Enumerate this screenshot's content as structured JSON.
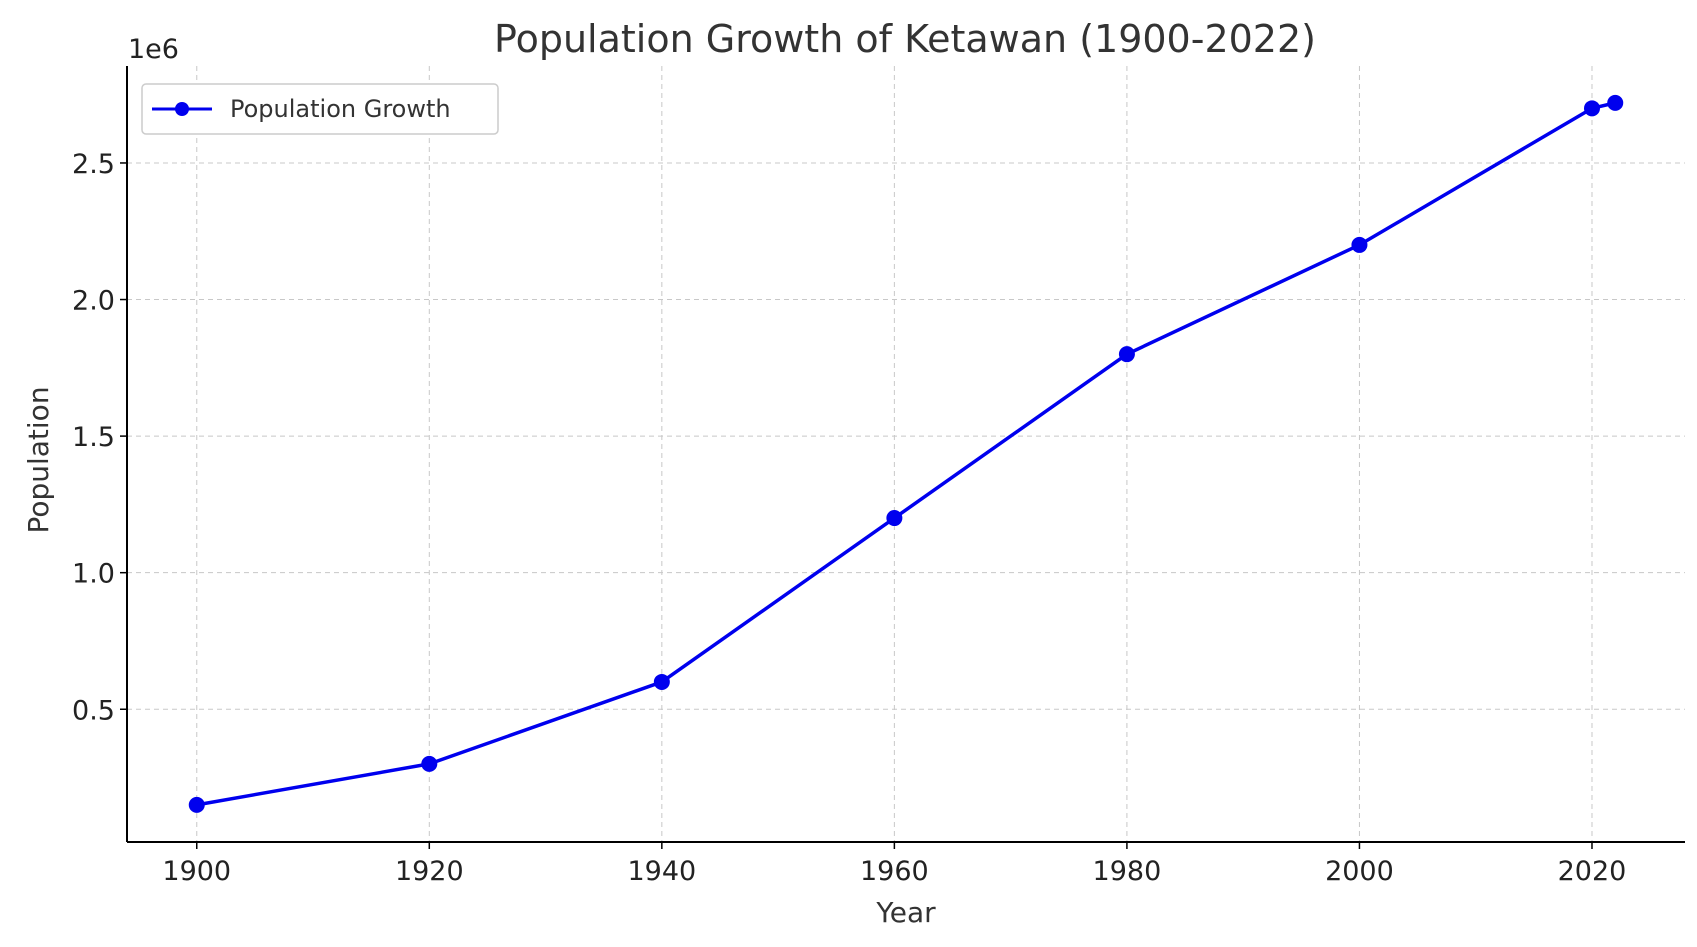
{
  "chart_data": {
    "type": "line",
    "title": "Population Growth of Ketawan (1900-2022)",
    "xlabel": "Year",
    "ylabel": "Population",
    "y_multiplier_label": "1e6",
    "x": [
      1900,
      1920,
      1940,
      1960,
      1980,
      2000,
      2020,
      2022
    ],
    "series": [
      {
        "name": "Population Growth",
        "color": "#0000ee",
        "values": [
          150000,
          300000,
          600000,
          1200000,
          1800000,
          2200000,
          2700000,
          2720000
        ]
      }
    ],
    "xlim": [
      1894,
      2028
    ],
    "ylim": [
      14000,
      2855000
    ],
    "x_ticks": [
      1900,
      1920,
      1940,
      1960,
      1980,
      2000,
      2020
    ],
    "x_tick_labels": [
      "1900",
      "1920",
      "1940",
      "1960",
      "1980",
      "2000",
      "2020"
    ],
    "y_ticks": [
      500000,
      1000000,
      1500000,
      2000000,
      2500000
    ],
    "y_tick_labels": [
      "0.5",
      "1.0",
      "1.5",
      "2.0",
      "2.5"
    ],
    "grid": true,
    "legend_position": "top-left"
  }
}
